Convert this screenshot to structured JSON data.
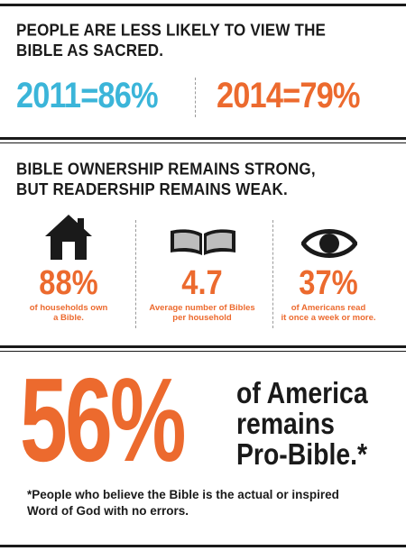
{
  "section1": {
    "heading_line1": "PEOPLE ARE LESS LIKELY TO VIEW THE",
    "heading_line2": "BIBLE AS SACRED.",
    "stat_2011": "2011=86%",
    "stat_2014": "2014=79%",
    "color_2011": "#3bb5d9",
    "color_2014": "#ec6a2e"
  },
  "section2": {
    "heading_line1": "BIBLE OWNERSHIP REMAINS STRONG,",
    "heading_line2": "BUT READERSHIP REMAINS WEAK.",
    "columns": [
      {
        "icon": "house-icon",
        "value": "88%",
        "caption_line1": "of households own",
        "caption_line2": "a Bible."
      },
      {
        "icon": "open-book-icon",
        "value": "4.7",
        "caption_line1": "Average number of Bibles",
        "caption_line2": "per household"
      },
      {
        "icon": "eye-icon",
        "value": "37%",
        "caption_line1": "of Americans read",
        "caption_line2": "it once a week or more."
      }
    ]
  },
  "section3": {
    "big_value": "56%",
    "line1": "of America",
    "line2": "remains",
    "line3": "Pro-Bible.*",
    "footnote_line1": "*People who believe the Bible is the actual or inspired",
    "footnote_line2": "Word of God with no errors."
  },
  "colors": {
    "accent": "#ec6a2e",
    "blue": "#3bb5d9",
    "text": "#1a1a1a"
  }
}
